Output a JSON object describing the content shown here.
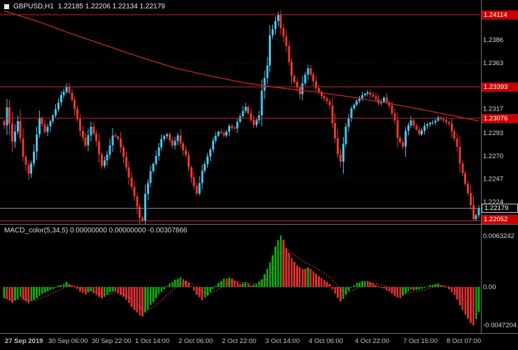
{
  "header": {
    "symbol": "GBPUSD,H1",
    "ohlc": "1.22185 1.22206 1.22134 1.22179"
  },
  "macd_panel": {
    "name": "MACD_color(5,34,5)",
    "values": "0.00000000 0.00000000 -0.00307866"
  },
  "colors": {
    "background": "#000000",
    "up": "#4fc1e9",
    "down": "#e8392f",
    "line_red": "#c62828",
    "current_line": "#8a8a8a",
    "grid": "#1f1f1f",
    "zero_line": "#3c3c3c",
    "separator": "#6e6e6e",
    "axis_text": "#d6d6d6",
    "time_text": "#c4c4c4",
    "macd_up": "#0ea80e",
    "macd_down": "#dd3030",
    "signal": "#cc4444",
    "badge_red": "#c80000",
    "badge_black": "#000000",
    "badge_border": "#c8c8c8"
  },
  "chart_data": {
    "type": "candlestick",
    "title": "GBPUSD H1 with MACD_color(5,34,5)",
    "candle_count": 176,
    "current_bar_ohlc": [
      1.22185,
      1.22206,
      1.22134,
      1.22179
    ],
    "price": {
      "domain": [
        1.2202,
        1.2426
      ],
      "ticks": [
        {
          "value": 1.2386,
          "label": "1.2386"
        },
        {
          "value": 1.2363,
          "label": "1.2363"
        },
        {
          "value": 1.2339,
          "label": "1.2339"
        },
        {
          "value": 1.2317,
          "label": "1.2317"
        },
        {
          "value": 1.2293,
          "label": "1.2293"
        },
        {
          "value": 1.227,
          "label": "1.2270"
        },
        {
          "value": 1.2247,
          "label": "1.2247"
        },
        {
          "value": 1.2224,
          "label": "1.2224"
        }
      ],
      "levels": [
        {
          "value": 1.24114,
          "label": "1.24114"
        },
        {
          "value": 1.23393,
          "label": "1.23393"
        },
        {
          "value": 1.23076,
          "label": "1.23076"
        },
        {
          "value": 1.22052,
          "label": "1.22052"
        }
      ],
      "current": {
        "value": 1.22179,
        "label": "1.22179"
      },
      "close_anchors": [
        [
          0,
          1.23
        ],
        [
          1,
          1.2318
        ],
        [
          3,
          1.2285
        ],
        [
          5,
          1.2305
        ],
        [
          7,
          1.227
        ],
        [
          9,
          1.2252
        ],
        [
          11,
          1.2275
        ],
        [
          13,
          1.2308
        ],
        [
          15,
          1.2295
        ],
        [
          18,
          1.231
        ],
        [
          21,
          1.233
        ],
        [
          23,
          1.234
        ],
        [
          26,
          1.2318
        ],
        [
          28,
          1.2295
        ],
        [
          30,
          1.228
        ],
        [
          32,
          1.23
        ],
        [
          34,
          1.2285
        ],
        [
          36,
          1.226
        ],
        [
          38,
          1.2272
        ],
        [
          40,
          1.229
        ],
        [
          42,
          1.2288
        ],
        [
          44,
          1.227
        ],
        [
          46,
          1.2248
        ],
        [
          48,
          1.223
        ],
        [
          50,
          1.2208
        ],
        [
          51,
          1.2206
        ],
        [
          52,
          1.2232
        ],
        [
          54,
          1.2255
        ],
        [
          56,
          1.227
        ],
        [
          58,
          1.2288
        ],
        [
          60,
          1.2292
        ],
        [
          62,
          1.228
        ],
        [
          64,
          1.229
        ],
        [
          65,
          1.2282
        ],
        [
          67,
          1.227
        ],
        [
          69,
          1.2248
        ],
        [
          71,
          1.2232
        ],
        [
          73,
          1.2255
        ],
        [
          75,
          1.227
        ],
        [
          77,
          1.2285
        ],
        [
          79,
          1.2295
        ],
        [
          81,
          1.229
        ],
        [
          83,
          1.23
        ],
        [
          85,
          1.2298
        ],
        [
          87,
          1.231
        ],
        [
          89,
          1.232
        ],
        [
          90,
          1.2312
        ],
        [
          92,
          1.23
        ],
        [
          94,
          1.231
        ],
        [
          95,
          1.2335
        ],
        [
          97,
          1.236
        ],
        [
          98,
          1.239
        ],
        [
          100,
          1.2405
        ],
        [
          101,
          1.2412
        ],
        [
          102,
          1.2398
        ],
        [
          104,
          1.238
        ],
        [
          105,
          1.2365
        ],
        [
          106,
          1.235
        ],
        [
          107,
          1.2344
        ],
        [
          109,
          1.2332
        ],
        [
          111,
          1.2352
        ],
        [
          112,
          1.2358
        ],
        [
          114,
          1.2345
        ],
        [
          115,
          1.2338
        ],
        [
          117,
          1.233
        ],
        [
          118,
          1.2328
        ],
        [
          120,
          1.232
        ],
        [
          121,
          1.2302
        ],
        [
          123,
          1.2272
        ],
        [
          124,
          1.2264
        ],
        [
          126,
          1.23
        ],
        [
          128,
          1.2318
        ],
        [
          130,
          1.2326
        ],
        [
          132,
          1.233
        ],
        [
          134,
          1.2334
        ],
        [
          136,
          1.233
        ],
        [
          138,
          1.2322
        ],
        [
          140,
          1.2328
        ],
        [
          142,
          1.232
        ],
        [
          144,
          1.2305
        ],
        [
          145,
          1.2288
        ],
        [
          147,
          1.228
        ],
        [
          148,
          1.2296
        ],
        [
          150,
          1.2305
        ],
        [
          151,
          1.23
        ],
        [
          153,
          1.2292
        ],
        [
          155,
          1.23
        ],
        [
          158,
          1.2304
        ],
        [
          160,
          1.2308
        ],
        [
          162,
          1.2306
        ],
        [
          164,
          1.2302
        ],
        [
          165,
          1.2295
        ],
        [
          167,
          1.228
        ],
        [
          168,
          1.2262
        ],
        [
          169,
          1.2252
        ],
        [
          171,
          1.2232
        ],
        [
          172,
          1.222
        ],
        [
          173,
          1.2207
        ],
        [
          174,
          1.2211
        ],
        [
          175,
          1.22179
        ]
      ],
      "ma_anchors": [
        [
          0,
          1.2415
        ],
        [
          12,
          1.2405
        ],
        [
          25,
          1.2392
        ],
        [
          37,
          1.2381
        ],
        [
          50,
          1.2369
        ],
        [
          63,
          1.2358
        ],
        [
          76,
          1.235
        ],
        [
          89,
          1.2343
        ],
        [
          102,
          1.2338
        ],
        [
          115,
          1.2334
        ],
        [
          128,
          1.2329
        ],
        [
          141,
          1.2323
        ],
        [
          153,
          1.2317
        ],
        [
          166,
          1.231
        ],
        [
          175,
          1.2305
        ]
      ],
      "wick_overrides": [
        {
          "i": 9,
          "low": 1.2246
        },
        {
          "i": 51,
          "low": 1.2204
        },
        {
          "i": 101,
          "high": 1.2414
        },
        {
          "i": 173,
          "low": 1.2205
        }
      ]
    },
    "x_ticks": [
      {
        "i": 1,
        "label": "27 Sep 2019"
      },
      {
        "i": 17,
        "label": "30 Sep 06:00"
      },
      {
        "i": 33,
        "label": "30 Sep 22:00"
      },
      {
        "i": 49,
        "label": "1 Oct 14:00"
      },
      {
        "i": 65,
        "label": "2 Oct 06:00"
      },
      {
        "i": 81,
        "label": "2 Oct 22:00"
      },
      {
        "i": 97,
        "label": "3 Oct 14:00"
      },
      {
        "i": 113,
        "label": "4 Oct 06:00"
      },
      {
        "i": 130,
        "label": "4 Oct 22:00"
      },
      {
        "i": 148,
        "label": "7 Oct 15:00"
      },
      {
        "i": 164,
        "label": "8 Oct 07:00"
      }
    ],
    "macd": {
      "domain": [
        -0.0057,
        0.0077
      ],
      "current_value": -0.00307866,
      "ticks": [
        {
          "value": 0.0063242,
          "label": "0.0063242"
        },
        {
          "value": 0,
          "label": "0.00"
        },
        {
          "value": -0.0047204,
          "label": "-0.0047204"
        }
      ],
      "anchors": [
        [
          0,
          -0.0014
        ],
        [
          3,
          -0.0019
        ],
        [
          6,
          -0.0012
        ],
        [
          9,
          -0.002
        ],
        [
          12,
          -0.0013
        ],
        [
          15,
          -0.0007
        ],
        [
          18,
          -0.0002
        ],
        [
          21,
          0.0003
        ],
        [
          23,
          0.0006
        ],
        [
          26,
          0.0001
        ],
        [
          28,
          -0.0005
        ],
        [
          30,
          -0.0009
        ],
        [
          32,
          -0.0005
        ],
        [
          34,
          -0.001
        ],
        [
          36,
          -0.0014
        ],
        [
          38,
          -0.0009
        ],
        [
          40,
          -0.0005
        ],
        [
          42,
          -0.0007
        ],
        [
          44,
          -0.0012
        ],
        [
          46,
          -0.002
        ],
        [
          48,
          -0.0028
        ],
        [
          50,
          -0.0035
        ],
        [
          51,
          -0.0036
        ],
        [
          53,
          -0.0028
        ],
        [
          55,
          -0.0018
        ],
        [
          57,
          -0.0009
        ],
        [
          59,
          -0.0002
        ],
        [
          61,
          0.0004
        ],
        [
          63,
          0.0009
        ],
        [
          65,
          0.0012
        ],
        [
          67,
          0.0008
        ],
        [
          69,
          0.0001
        ],
        [
          71,
          -0.001
        ],
        [
          73,
          -0.0016
        ],
        [
          75,
          -0.001
        ],
        [
          77,
          -0.0003
        ],
        [
          79,
          0.0005
        ],
        [
          81,
          0.001
        ],
        [
          83,
          0.0012
        ],
        [
          85,
          0.0008
        ],
        [
          87,
          0.0004
        ],
        [
          89,
          0.0006
        ],
        [
          91,
          0.0002
        ],
        [
          93,
          0.0003
        ],
        [
          95,
          0.001
        ],
        [
          97,
          0.0022
        ],
        [
          99,
          0.004
        ],
        [
          100,
          0.005
        ],
        [
          101,
          0.0058
        ],
        [
          102,
          0.0063242
        ],
        [
          103,
          0.0058
        ],
        [
          104,
          0.0048
        ],
        [
          106,
          0.0036
        ],
        [
          108,
          0.0026
        ],
        [
          110,
          0.0022
        ],
        [
          112,
          0.0024
        ],
        [
          114,
          0.002
        ],
        [
          116,
          0.0014
        ],
        [
          118,
          0.0009
        ],
        [
          120,
          0.0004
        ],
        [
          122,
          -0.0008
        ],
        [
          124,
          -0.0018
        ],
        [
          126,
          -0.001
        ],
        [
          128,
          0.0
        ],
        [
          130,
          0.0005
        ],
        [
          132,
          0.0007
        ],
        [
          134,
          0.0008
        ],
        [
          136,
          0.0005
        ],
        [
          138,
          0.0001
        ],
        [
          140,
          -0.0002
        ],
        [
          142,
          -0.0006
        ],
        [
          144,
          -0.0011
        ],
        [
          146,
          -0.0014
        ],
        [
          148,
          -0.0008
        ],
        [
          150,
          -0.0003
        ],
        [
          152,
          -0.0004
        ],
        [
          154,
          -0.0002
        ],
        [
          156,
          0.0001
        ],
        [
          158,
          0.0003
        ],
        [
          160,
          0.0004
        ],
        [
          162,
          0.0002
        ],
        [
          164,
          -0.0002
        ],
        [
          166,
          -0.001
        ],
        [
          168,
          -0.0022
        ],
        [
          170,
          -0.0034
        ],
        [
          172,
          -0.0044
        ],
        [
          173,
          -0.0047204
        ],
        [
          174,
          -0.004
        ],
        [
          175,
          -0.00307866
        ]
      ]
    }
  }
}
